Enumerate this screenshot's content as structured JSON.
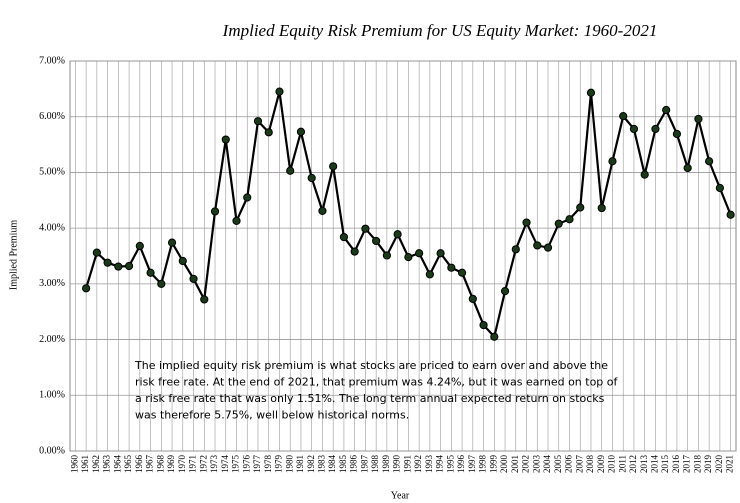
{
  "chart_data": {
    "type": "line",
    "title": "Implied Equity Risk Premium for US Equity Market: 1960-2021",
    "x_label": "Year",
    "y_label": "Implied Premium",
    "categories": [
      "1960",
      "1961",
      "1962",
      "1963",
      "1964",
      "1965",
      "1966",
      "1967",
      "1968",
      "1969",
      "1970",
      "1971",
      "1972",
      "1973",
      "1974",
      "1975",
      "1976",
      "1977",
      "1978",
      "1979",
      "1980",
      "1981",
      "1982",
      "1983",
      "1984",
      "1985",
      "1986",
      "1987",
      "1988",
      "1989",
      "1990",
      "1991",
      "1992",
      "1993",
      "1994",
      "1995",
      "1996",
      "1997",
      "1998",
      "1999",
      "2000",
      "2001",
      "2002",
      "2003",
      "2004",
      "2005",
      "2006",
      "2007",
      "2008",
      "2009",
      "2010",
      "2011",
      "2012",
      "2013",
      "2014",
      "2015",
      "2016",
      "2017",
      "2018",
      "2019",
      "2020",
      "2021"
    ],
    "series": [
      {
        "name": "Implied Premium",
        "color": "#000000",
        "marker_color": "#1a3a1a",
        "values": [
          null,
          2.92,
          3.56,
          3.38,
          3.31,
          3.32,
          3.68,
          3.2,
          3.0,
          3.74,
          3.41,
          3.09,
          2.72,
          4.3,
          5.59,
          4.13,
          4.55,
          5.92,
          5.72,
          6.45,
          5.03,
          5.73,
          4.9,
          4.31,
          5.11,
          3.84,
          3.58,
          3.99,
          3.77,
          3.51,
          3.89,
          3.48,
          3.55,
          3.17,
          3.55,
          3.29,
          3.2,
          2.73,
          2.26,
          2.05,
          2.87,
          3.62,
          4.1,
          3.69,
          3.65,
          4.08,
          4.16,
          4.37,
          6.43,
          4.36,
          5.2,
          6.01,
          5.78,
          4.96,
          5.78,
          6.12,
          5.69,
          5.08,
          5.96,
          5.2,
          4.72,
          4.24
        ]
      }
    ],
    "ylim": [
      0,
      7
    ],
    "yticks": [
      {
        "value": 0,
        "label": "0.00%"
      },
      {
        "value": 1,
        "label": "1.00%"
      },
      {
        "value": 2,
        "label": "2.00%"
      },
      {
        "value": 3,
        "label": "3.00%"
      },
      {
        "value": 4,
        "label": "4.00%"
      },
      {
        "value": 5,
        "label": "5.00%"
      },
      {
        "value": 6,
        "label": "6.00%"
      },
      {
        "value": 7,
        "label": "7.00%"
      }
    ],
    "grid": true,
    "annotation": [
      "The implied equity risk premium is what stocks are priced to earn over and above the",
      "risk free rate. At the end of 2021, that premium was 4.24%, but it was earned on top of",
      "a risk free rate that was only 1.51%. The long term annual expected return on stocks",
      "was therefore 5.75%, well below historical norms."
    ]
  }
}
